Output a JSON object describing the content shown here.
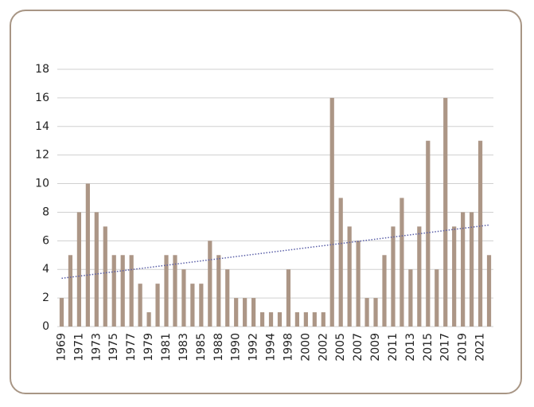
{
  "chart_data": {
    "type": "bar",
    "categories": [
      1969,
      null,
      1971,
      null,
      1973,
      null,
      1975,
      null,
      1977,
      null,
      1979,
      null,
      1981,
      null,
      1983,
      null,
      1985,
      null,
      1988,
      null,
      1990,
      null,
      1992,
      null,
      1994,
      null,
      1998,
      null,
      2000,
      null,
      2002,
      null,
      2005,
      null,
      2007,
      null,
      2009,
      null,
      2011,
      null,
      2013,
      null,
      2015,
      null,
      2017,
      null,
      2019,
      null,
      2021,
      null
    ],
    "values": [
      2,
      5,
      8,
      10,
      8,
      7,
      5,
      5,
      5,
      3,
      1,
      3,
      5,
      5,
      4,
      3,
      3,
      6,
      5,
      4,
      2,
      2,
      2,
      1,
      1,
      1,
      4,
      1,
      1,
      1,
      1,
      16,
      9,
      7,
      6,
      2,
      2,
      5,
      7,
      9,
      4,
      7,
      13,
      4,
      16,
      7,
      8,
      8,
      13,
      5
    ],
    "color": "#ac9686",
    "ylim": [
      0,
      18
    ],
    "yticks": [
      0,
      2,
      4,
      6,
      8,
      10,
      12,
      14,
      16,
      18
    ],
    "grid": true,
    "trendline": "linear",
    "trendline_color": "#5a5fa8"
  }
}
